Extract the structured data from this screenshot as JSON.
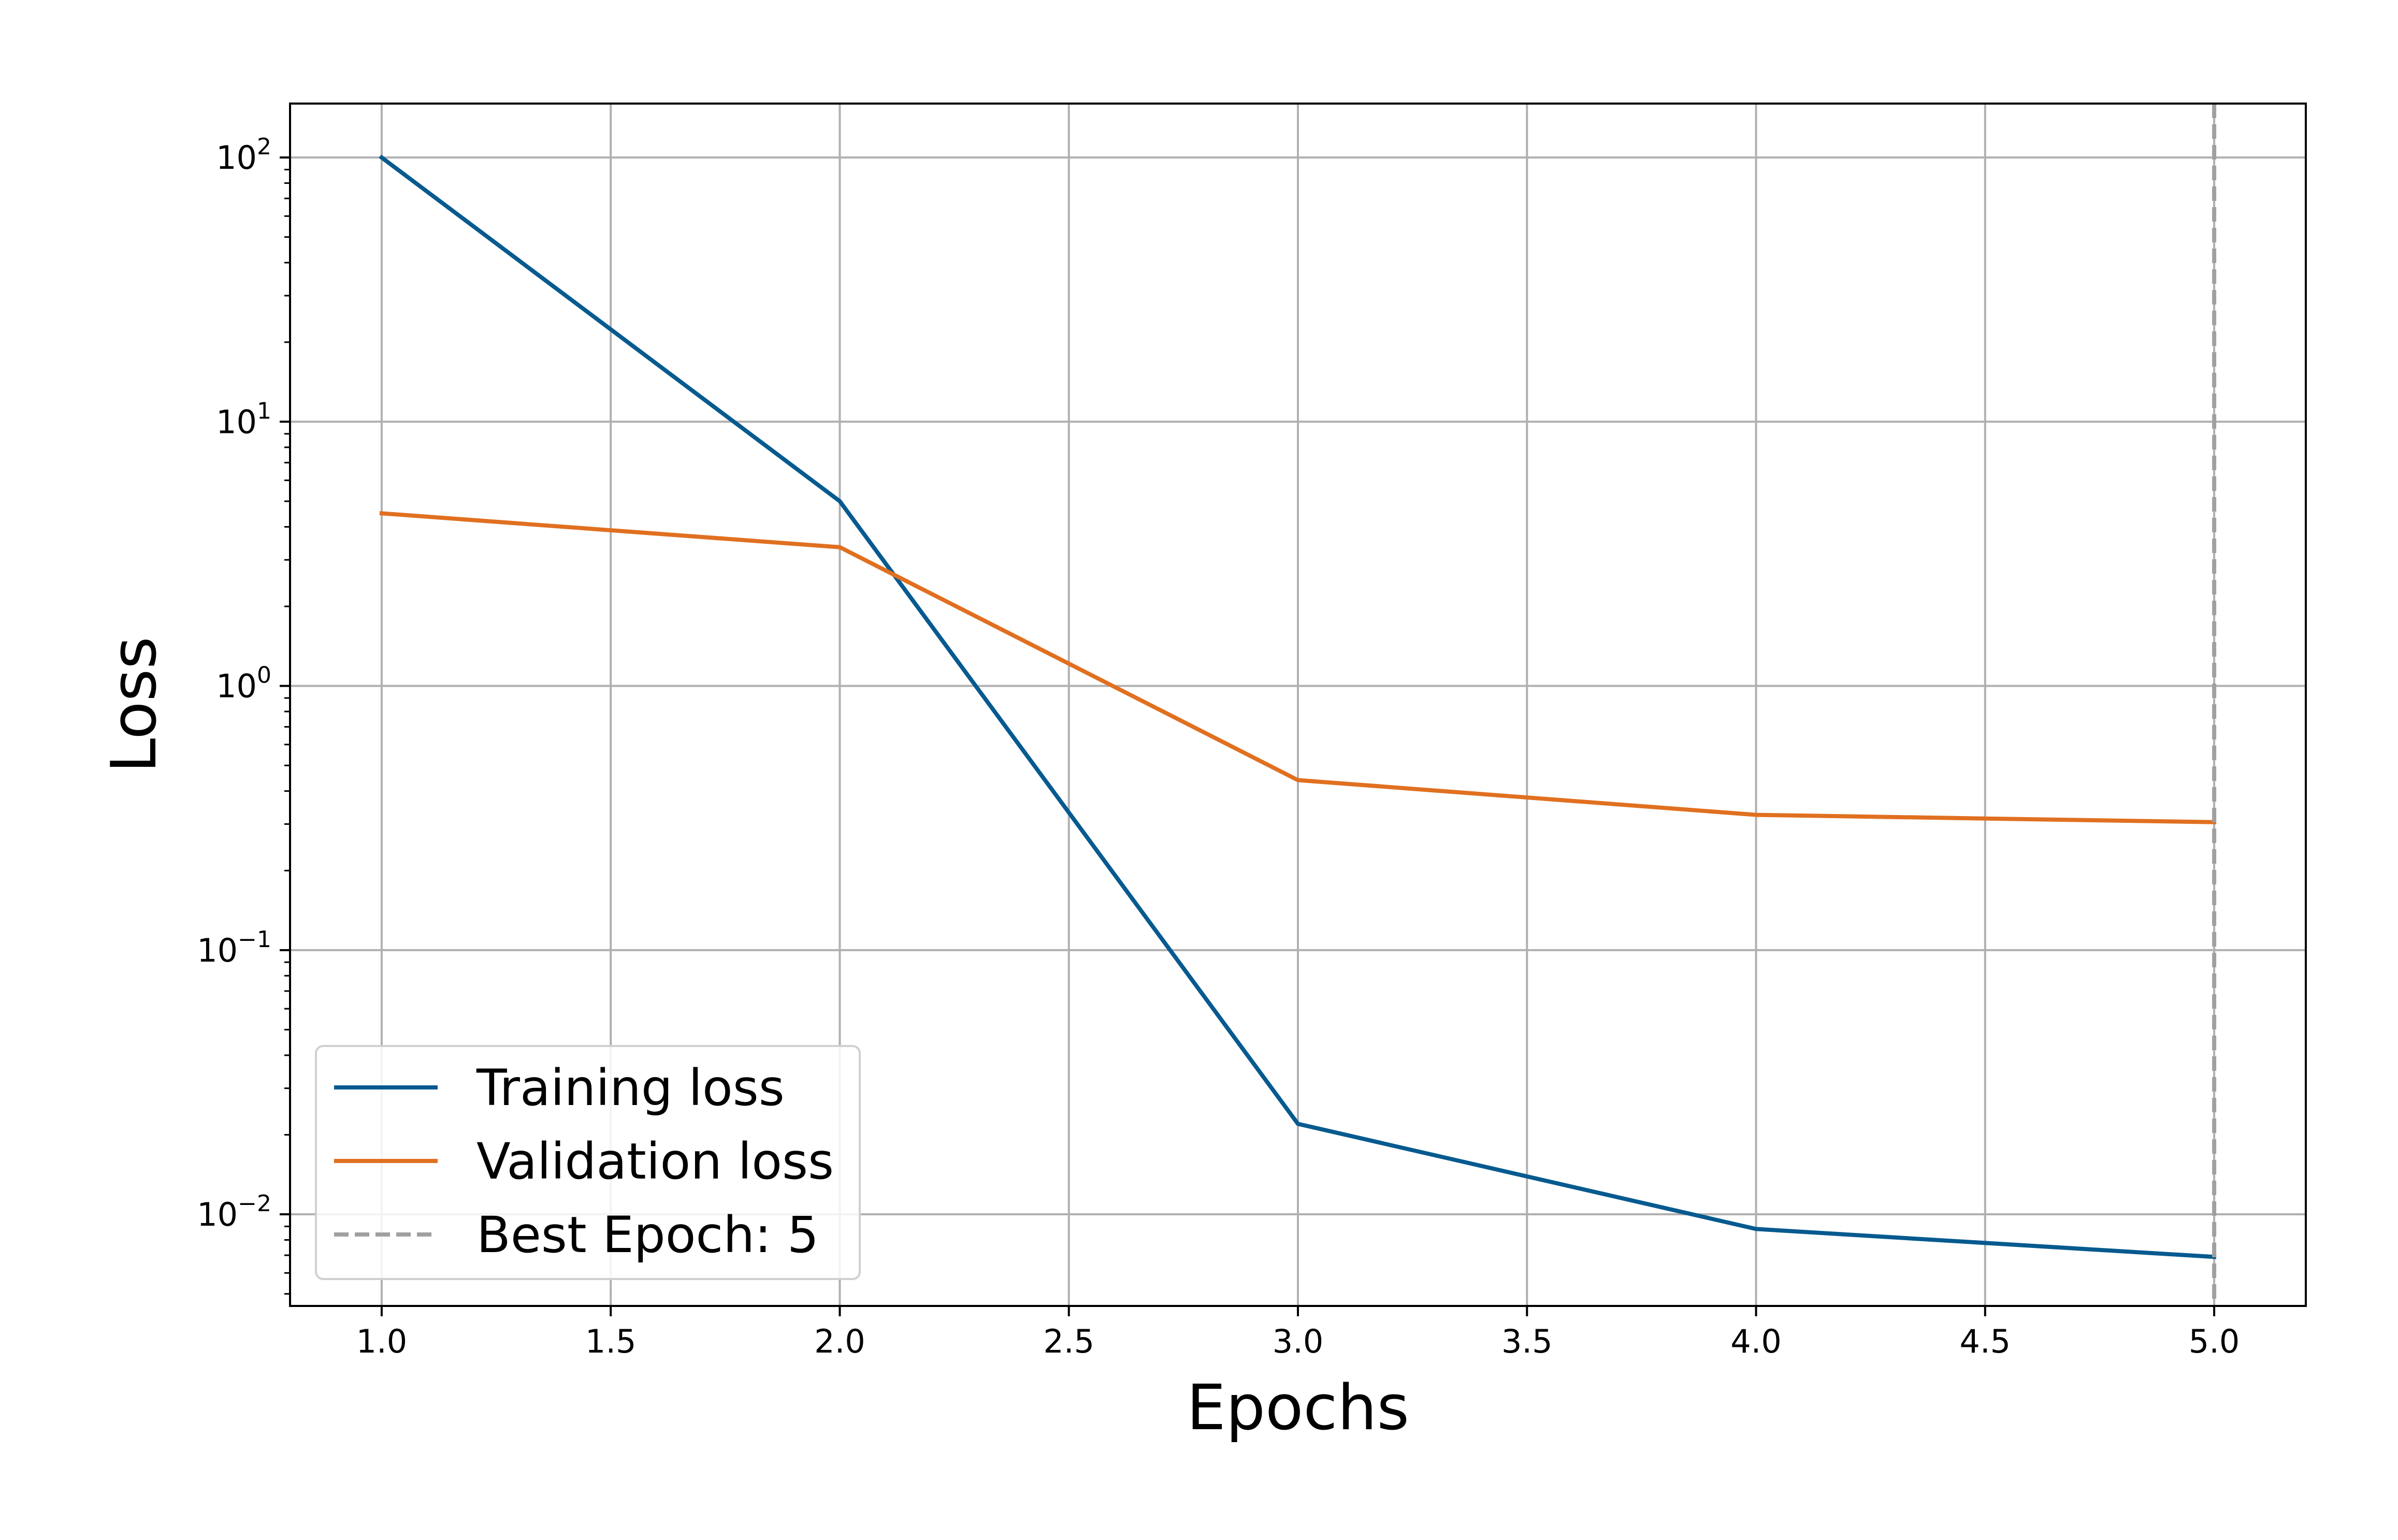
{
  "chart_data": {
    "type": "line",
    "title": "",
    "xlabel": "Epochs",
    "ylabel": "Loss",
    "x": [
      1,
      2,
      3,
      4,
      5
    ],
    "xlim": [
      0.8,
      5.2
    ],
    "ylim": [
      0.0045,
      160
    ],
    "yscale": "log",
    "grid": true,
    "xticks": [
      1.0,
      1.5,
      2.0,
      2.5,
      3.0,
      3.5,
      4.0,
      4.5,
      5.0
    ],
    "xtick_labels": [
      "1.0",
      "1.5",
      "2.0",
      "2.5",
      "3.0",
      "3.5",
      "4.0",
      "4.5",
      "5.0"
    ],
    "yticks": [
      {
        "value": 0.01,
        "base": "10",
        "exp": "−2"
      },
      {
        "value": 0.1,
        "base": "10",
        "exp": "−1"
      },
      {
        "value": 1,
        "base": "10",
        "exp": "0"
      },
      {
        "value": 10,
        "base": "10",
        "exp": "1"
      },
      {
        "value": 100,
        "base": "10",
        "exp": "2"
      }
    ],
    "series": [
      {
        "name": "Training loss",
        "color": "#065a8f",
        "style": "solid",
        "values": [
          100,
          5.0,
          0.022,
          0.0088,
          0.0069
        ]
      },
      {
        "name": "Validation loss",
        "color": "#e07020",
        "style": "solid",
        "values": [
          4.5,
          3.35,
          0.44,
          0.325,
          0.305
        ]
      }
    ],
    "vline": {
      "name": "Best Epoch: 5",
      "x": 5,
      "color": "#a0a0a0",
      "style": "dashed"
    },
    "legend_position": "lower-left"
  }
}
